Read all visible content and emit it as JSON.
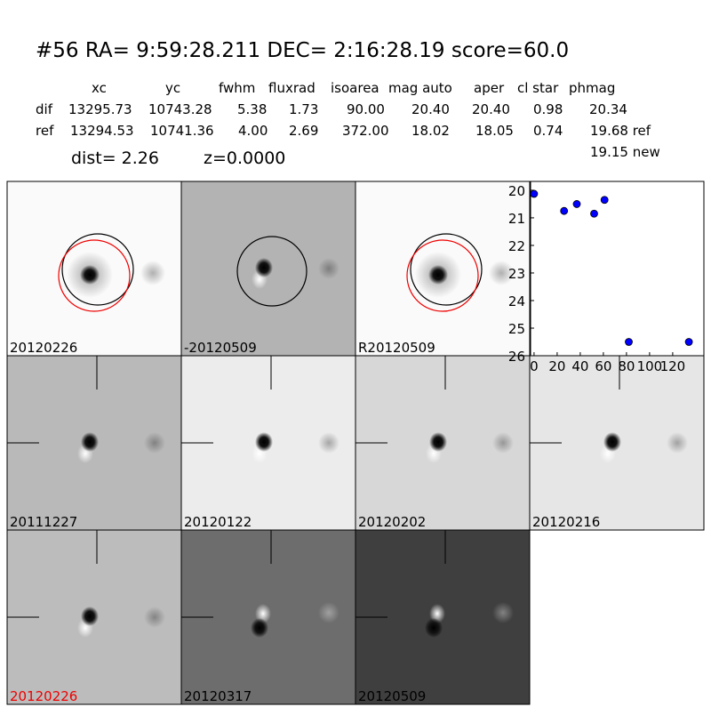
{
  "header": {
    "title": "#56   RA= 9:59:28.211 DEC= 2:16:28.19       score=60.0",
    "dist": "dist=  2.26",
    "z": "z=0.0000"
  },
  "table": {
    "columns": [
      "xc",
      "yc",
      "fwhm",
      "fluxrad",
      "isoarea",
      "mag auto",
      "aper",
      "cl star",
      "phmag"
    ],
    "rows": [
      [
        "dif",
        "13295.73",
        "10743.28",
        "5.38",
        "1.73",
        "90.00",
        "20.40",
        "20.40",
        "0.98",
        "20.34"
      ],
      [
        "ref",
        "13294.53",
        "10741.36",
        "4.00",
        "2.69",
        "372.00",
        "18.02",
        "18.05",
        "0.74",
        "19.68 ref"
      ]
    ],
    "extra": "19.15 new"
  },
  "panels": [
    "20120226",
    "-20120509",
    "R20120509",
    "20111227",
    "20120122",
    "20120202",
    "20120216",
    "20120226",
    "20120317",
    "20120509"
  ],
  "chart_data": {
    "type": "scatter",
    "color": "#0000ff",
    "x": [
      0,
      26,
      37,
      52,
      61,
      82,
      134
    ],
    "values": [
      20.13,
      20.75,
      20.5,
      20.85,
      20.35,
      25.5,
      25.5
    ],
    "xlim": [
      -3,
      147
    ],
    "xticks": [
      0,
      20,
      40,
      60,
      80,
      100,
      120
    ],
    "ylim": [
      19.68,
      26
    ],
    "yticks": [
      20,
      21,
      22,
      23,
      24,
      25,
      26
    ],
    "y_inverted": true
  }
}
